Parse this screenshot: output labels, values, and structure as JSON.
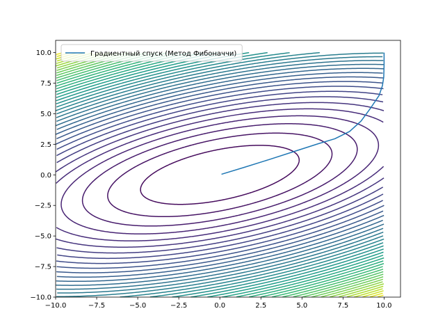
{
  "chart_data": {
    "type": "line",
    "title": "",
    "xlabel": "",
    "ylabel": "",
    "xlim": [
      -10,
      11
    ],
    "ylim": [
      -10,
      11
    ],
    "x_ticks": [
      -10,
      -7.5,
      -5,
      -2.5,
      0,
      2.5,
      5,
      7.5,
      10
    ],
    "y_ticks": [
      -10,
      -7.5,
      -5,
      -2.5,
      0,
      2.5,
      5,
      7.5,
      10
    ],
    "x_tick_labels": [
      "−10.0",
      "−7.5",
      "−5.0",
      "−2.5",
      "0.0",
      "2.5",
      "5.0",
      "7.5",
      "10.0"
    ],
    "y_tick_labels": [
      "−10.0",
      "−7.5",
      "−5.0",
      "−2.5",
      "0.0",
      "2.5",
      "5.0",
      "7.5",
      "10.0"
    ],
    "grid": false,
    "legend_position": "upper-left",
    "contour": {
      "domain_x": [
        -10,
        10
      ],
      "domain_y": [
        -10,
        10
      ],
      "function": "x^2 - 2xy + 4y^2",
      "level_count": 40,
      "colormap": "viridis"
    },
    "series": [
      {
        "name": "Градиентный спуск (Метод Фибоначчи)",
        "color": "#1f77b4",
        "points": [
          [
            10,
            10
          ],
          [
            10,
            9.0
          ],
          [
            9.98,
            8.0
          ],
          [
            9.9,
            7.3
          ],
          [
            9.7,
            6.5
          ],
          [
            9.2,
            5.5
          ],
          [
            8.6,
            4.4
          ],
          [
            7.9,
            3.55
          ],
          [
            7.0,
            2.95
          ],
          [
            6.0,
            2.55
          ],
          [
            4.5,
            1.9
          ],
          [
            3.0,
            1.25
          ],
          [
            1.5,
            0.62
          ],
          [
            0.1,
            0.05
          ]
        ]
      }
    ]
  }
}
